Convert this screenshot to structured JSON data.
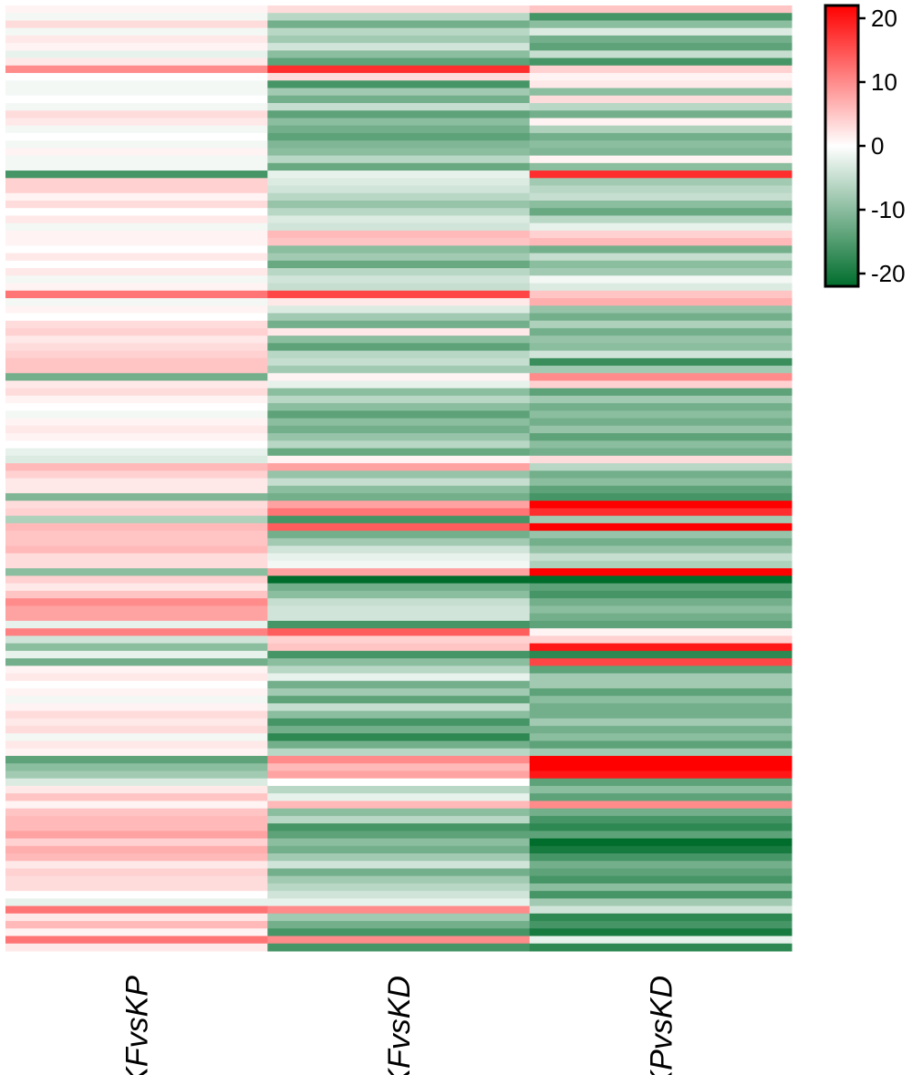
{
  "chart_data": {
    "type": "heatmap",
    "title": "",
    "xlabel": "",
    "ylabel": "",
    "columns": [
      "KFvsKP",
      "KFvsKD",
      "KPvsKD"
    ],
    "color_scale": {
      "min": -22,
      "max": 22,
      "ticks": [
        20,
        10,
        0,
        -10,
        -20
      ],
      "low_color": "#006d2c",
      "mid_color": "#ffffff",
      "high_color": "#ff0000"
    },
    "grid": false,
    "legend_position": "top-right",
    "rows": [
      [
        1,
        3,
        5
      ],
      [
        -1,
        -6,
        -16
      ],
      [
        3,
        -12,
        -10
      ],
      [
        -1,
        -6,
        -3
      ],
      [
        2,
        -8,
        -12
      ],
      [
        1,
        -4,
        -14
      ],
      [
        -2,
        -10,
        -5
      ],
      [
        2,
        -14,
        -16
      ],
      [
        10,
        18,
        4
      ],
      [
        0,
        3,
        1
      ],
      [
        -1,
        -16,
        2
      ],
      [
        -1,
        -8,
        -10
      ],
      [
        0,
        -12,
        3
      ],
      [
        -1,
        -5,
        -6
      ],
      [
        3,
        -14,
        -12
      ],
      [
        2,
        -10,
        1
      ],
      [
        -1,
        -12,
        -7
      ],
      [
        0,
        -14,
        -12
      ],
      [
        -1,
        -11,
        -10
      ],
      [
        1,
        -10,
        -11
      ],
      [
        -1,
        -6,
        1
      ],
      [
        -1,
        -13,
        -10
      ],
      [
        -16,
        -2,
        18
      ],
      [
        4,
        -3,
        -8
      ],
      [
        4,
        -4,
        -6
      ],
      [
        1,
        -6,
        -5
      ],
      [
        3,
        -9,
        -10
      ],
      [
        0,
        -6,
        -13
      ],
      [
        2,
        -3,
        -6
      ],
      [
        -1,
        -4,
        -2
      ],
      [
        1,
        6,
        4
      ],
      [
        1,
        5,
        6
      ],
      [
        0,
        -10,
        -12
      ],
      [
        2,
        -8,
        -5
      ],
      [
        0,
        -13,
        -10
      ],
      [
        2,
        -6,
        -8
      ],
      [
        -1,
        -4,
        -1
      ],
      [
        1,
        -5,
        -3
      ],
      [
        12,
        16,
        5
      ],
      [
        -1,
        2,
        7
      ],
      [
        1,
        -3,
        -9
      ],
      [
        0,
        -8,
        -12
      ],
      [
        3,
        -12,
        -7
      ],
      [
        4,
        2,
        -12
      ],
      [
        2,
        -10,
        -9
      ],
      [
        3,
        -14,
        -10
      ],
      [
        4,
        -6,
        -4
      ],
      [
        5,
        -5,
        -17
      ],
      [
        5,
        -8,
        -8
      ],
      [
        -12,
        1,
        10
      ],
      [
        2,
        -2,
        4
      ],
      [
        3,
        -10,
        -14
      ],
      [
        1,
        -6,
        -8
      ],
      [
        0,
        -10,
        -12
      ],
      [
        -1,
        -14,
        -10
      ],
      [
        1,
        -10,
        -12
      ],
      [
        2,
        -12,
        -9
      ],
      [
        1,
        -9,
        -14
      ],
      [
        0,
        -6,
        -10
      ],
      [
        -2,
        -13,
        -12
      ],
      [
        -3,
        1,
        3
      ],
      [
        6,
        8,
        -6
      ],
      [
        4,
        -9,
        -12
      ],
      [
        2,
        -5,
        -10
      ],
      [
        2,
        -10,
        -14
      ],
      [
        -11,
        -12,
        -16
      ],
      [
        3,
        8,
        22
      ],
      [
        4,
        12,
        18
      ],
      [
        -7,
        -16,
        -8
      ],
      [
        6,
        14,
        22
      ],
      [
        5,
        -12,
        -9
      ],
      [
        5,
        -8,
        -12
      ],
      [
        6,
        -4,
        -9
      ],
      [
        3,
        -2,
        -5
      ],
      [
        3,
        -1,
        -7
      ],
      [
        -10,
        8,
        22
      ],
      [
        4,
        -22,
        -24
      ],
      [
        2,
        -12,
        -14
      ],
      [
        5,
        -10,
        -16
      ],
      [
        10,
        -5,
        -12
      ],
      [
        8,
        -4,
        -10
      ],
      [
        8,
        -4,
        -12
      ],
      [
        -2,
        -16,
        -14
      ],
      [
        11,
        14,
        1
      ],
      [
        -4,
        4,
        4
      ],
      [
        -10,
        5,
        20
      ],
      [
        -2,
        -16,
        -18
      ],
      [
        -12,
        -10,
        16
      ],
      [
        1,
        -6,
        -14
      ],
      [
        2,
        -2,
        -8
      ],
      [
        0,
        -12,
        -8
      ],
      [
        1,
        -8,
        -14
      ],
      [
        -1,
        -14,
        -10
      ],
      [
        1,
        -5,
        -12
      ],
      [
        3,
        -10,
        -12
      ],
      [
        2,
        -16,
        -8
      ],
      [
        3,
        -12,
        -12
      ],
      [
        -1,
        -18,
        -10
      ],
      [
        2,
        -12,
        -14
      ],
      [
        1,
        -6,
        -8
      ],
      [
        -14,
        10,
        24
      ],
      [
        -10,
        6,
        22
      ],
      [
        -8,
        8,
        20
      ],
      [
        -3,
        0,
        -14
      ],
      [
        2,
        -6,
        -10
      ],
      [
        5,
        -2,
        -14
      ],
      [
        1,
        6,
        10
      ],
      [
        5,
        -10,
        -12
      ],
      [
        6,
        -6,
        -16
      ],
      [
        6,
        -16,
        -18
      ],
      [
        8,
        -14,
        -14
      ],
      [
        4,
        -10,
        -22
      ],
      [
        7,
        -12,
        -20
      ],
      [
        6,
        -8,
        -16
      ],
      [
        2,
        -4,
        -12
      ],
      [
        4,
        -12,
        -14
      ],
      [
        3,
        -8,
        -16
      ],
      [
        3,
        -6,
        -10
      ],
      [
        0,
        -4,
        -16
      ],
      [
        -2,
        -2,
        -8
      ],
      [
        12,
        10,
        -4
      ],
      [
        2,
        -8,
        -18
      ],
      [
        6,
        -12,
        -16
      ],
      [
        1,
        -16,
        -20
      ],
      [
        12,
        10,
        -2
      ],
      [
        2,
        -16,
        -18
      ]
    ]
  }
}
